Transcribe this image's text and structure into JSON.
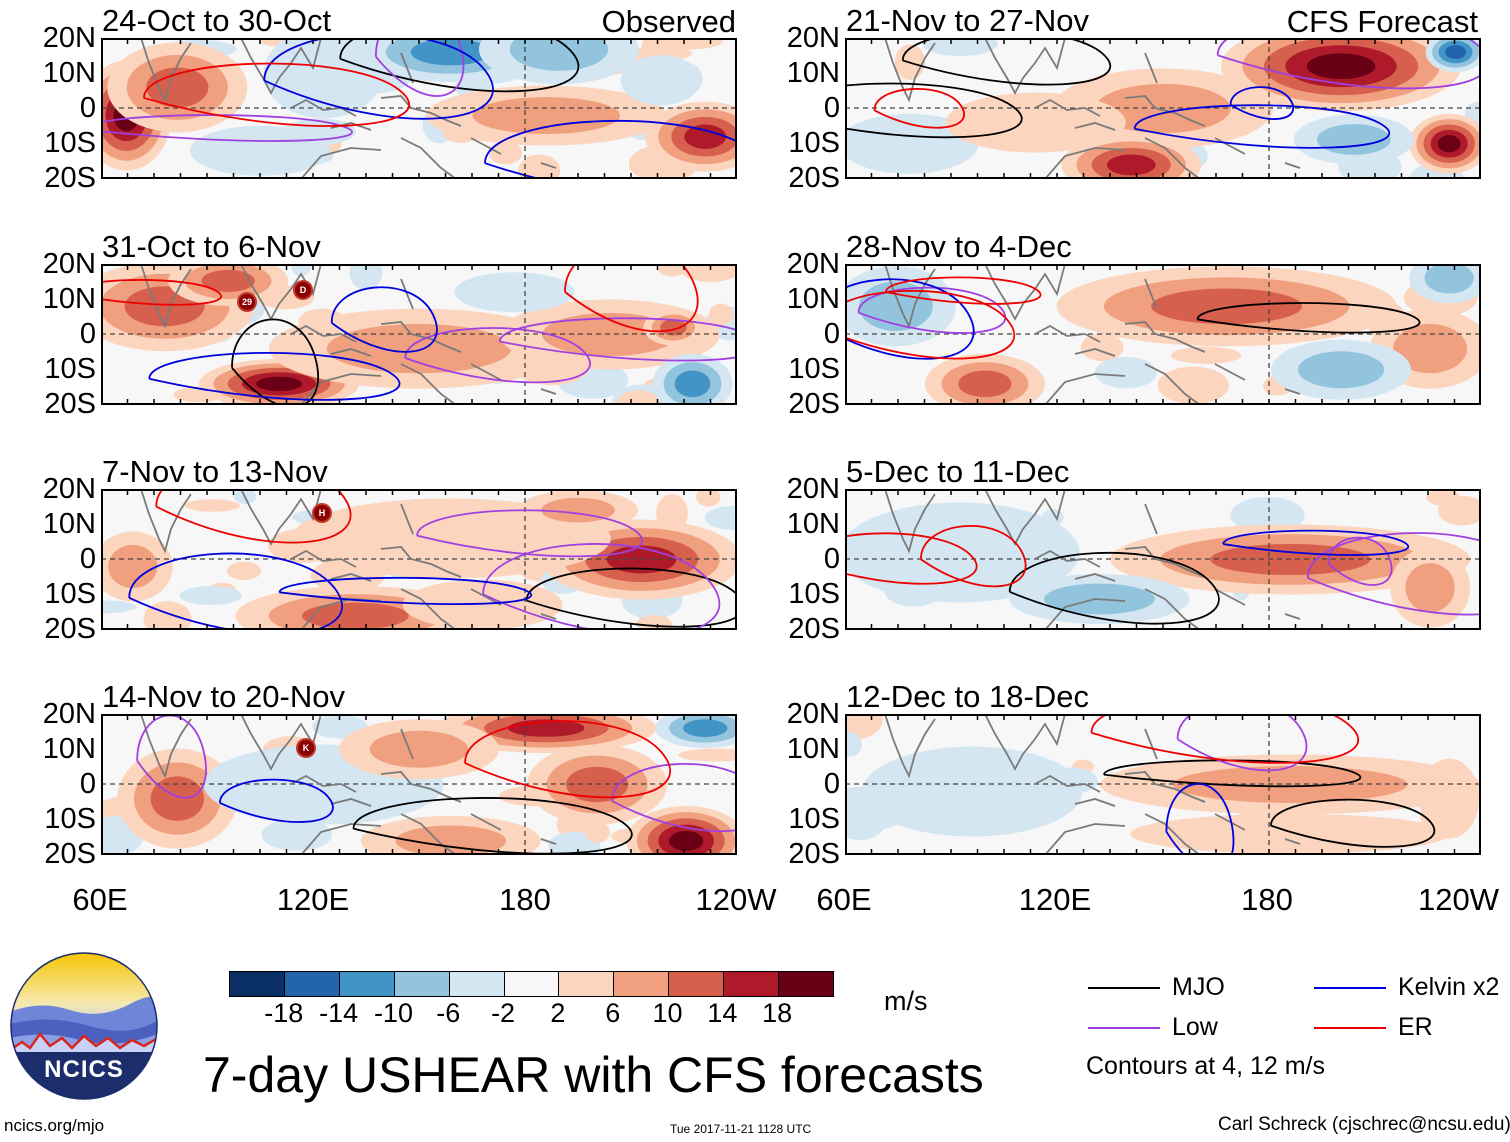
{
  "chart_data": {
    "type": "heatmap",
    "title": "7-day USHEAR with CFS forecasts",
    "units": "m/s",
    "colorbar": {
      "levels": [
        "-18",
        "-14",
        "-10",
        "-6",
        "-2",
        "2",
        "6",
        "10",
        "14",
        "18"
      ],
      "colors": [
        "#0a2f66",
        "#2365ad",
        "#4293c6",
        "#93c4de",
        "#d3e6f1",
        "#f7f7f7",
        "#fcd5bf",
        "#f0a07f",
        "#d6604d",
        "#ae1a2a",
        "#6a0015"
      ]
    },
    "lat_ticks": [
      "20N",
      "10N",
      "0",
      "10S",
      "20S"
    ],
    "lon_ticks": [
      "60E",
      "120E",
      "180",
      "120W"
    ],
    "columns": [
      {
        "label": "Observed",
        "panels": [
          {
            "title": "24-Oct to 30-Oct"
          },
          {
            "title": "31-Oct to 6-Nov"
          },
          {
            "title": "7-Nov to 13-Nov"
          },
          {
            "title": "14-Nov to 20-Nov"
          }
        ]
      },
      {
        "label": "CFS Forecast",
        "panels": [
          {
            "title": "21-Nov to 27-Nov"
          },
          {
            "title": "28-Nov to 4-Dec"
          },
          {
            "title": "5-Dec to 11-Dec"
          },
          {
            "title": "12-Dec to 18-Dec"
          }
        ]
      }
    ],
    "contour_legend": [
      {
        "name": "MJO",
        "color": "#000000"
      },
      {
        "name": "Kelvin x2",
        "color": "#0000dd"
      },
      {
        "name": "Low",
        "color": "#a040e0"
      },
      {
        "name": "ER",
        "color": "#ee0000"
      }
    ],
    "contour_note": "Contours at 4, 12 m/s",
    "storm_markers": [
      "29",
      "D",
      "H",
      "K"
    ]
  },
  "logo": {
    "text": "NCICS"
  },
  "footer": {
    "left": "ncics.org/mjo",
    "center": "Tue 2017-11-21 1128 UTC",
    "right": "Carl Schreck (cjschrec@ncsu.edu)"
  }
}
